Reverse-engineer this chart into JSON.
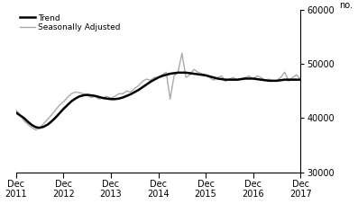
{
  "ylabel": "no.",
  "ylim": [
    30000,
    60000
  ],
  "yticks": [
    30000,
    40000,
    50000,
    60000
  ],
  "x_labels": [
    "Dec\n2011",
    "Dec\n2012",
    "Dec\n2013",
    "Dec\n2014",
    "Dec\n2015",
    "Dec\n2016",
    "Dec\n2017"
  ],
  "xtick_positions": [
    0,
    12,
    24,
    36,
    48,
    60,
    72
  ],
  "xlim": [
    0,
    72
  ],
  "trend_color": "#000000",
  "seasonal_color": "#aaaaaa",
  "background_color": "#ffffff",
  "legend_labels": [
    "Trend",
    "Seasonally Adjusted"
  ],
  "trend_lw": 1.8,
  "seasonal_lw": 1.0,
  "trend_y": [
    41000,
    40500,
    40000,
    39300,
    38700,
    38300,
    38200,
    38400,
    38800,
    39400,
    40100,
    40900,
    41700,
    42400,
    43100,
    43600,
    44000,
    44200,
    44300,
    44200,
    44100,
    43900,
    43700,
    43600,
    43500,
    43500,
    43600,
    43800,
    44100,
    44400,
    44800,
    45200,
    45700,
    46200,
    46700,
    47100,
    47500,
    47800,
    48000,
    48200,
    48300,
    48400,
    48400,
    48400,
    48300,
    48200,
    48100,
    48000,
    47900,
    47700,
    47500,
    47300,
    47200,
    47100,
    47100,
    47100,
    47100,
    47200,
    47300,
    47300,
    47300,
    47200,
    47100,
    47000,
    46900,
    46900,
    46900,
    47000,
    47100,
    47100,
    47100,
    47100,
    47100
  ],
  "seasonal_y": [
    41500,
    40500,
    39500,
    38800,
    38200,
    37800,
    38200,
    39000,
    39800,
    40600,
    41500,
    42400,
    43000,
    43800,
    44500,
    44800,
    44700,
    44500,
    44200,
    43800,
    44000,
    43500,
    43800,
    44000,
    43700,
    44000,
    44500,
    44500,
    45000,
    44800,
    45500,
    46000,
    46800,
    47200,
    47000,
    47500,
    47500,
    48000,
    48500,
    43500,
    47800,
    48500,
    52000,
    47500,
    48000,
    49000,
    48500,
    48200,
    48000,
    47500,
    47000,
    47500,
    47800,
    46800,
    47200,
    47500,
    47000,
    47200,
    47500,
    47800,
    47200,
    47800,
    47500,
    47000,
    47200,
    46800,
    47000,
    47500,
    48500,
    46800,
    47500,
    48000,
    47200
  ]
}
